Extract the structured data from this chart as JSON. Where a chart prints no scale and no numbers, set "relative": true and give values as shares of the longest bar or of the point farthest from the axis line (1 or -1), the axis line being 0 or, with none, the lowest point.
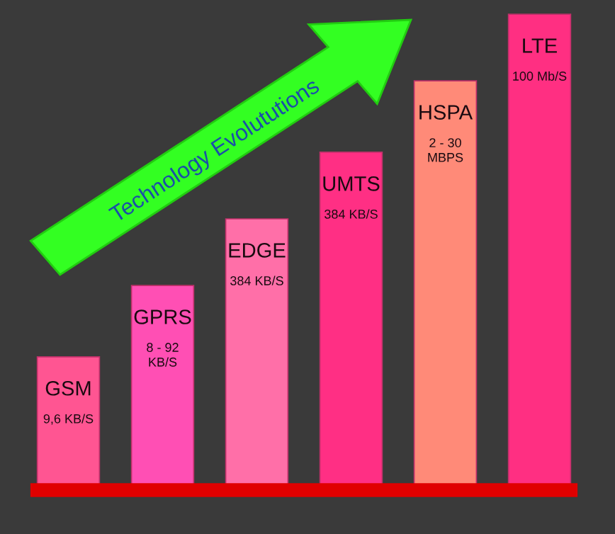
{
  "chart_data": {
    "type": "bar",
    "relative": true,
    "categories": [
      "GSM",
      "GPRS",
      "EDGE",
      "UMTS",
      "HSPA",
      "LTE"
    ],
    "values": [
      0.28,
      0.43,
      0.57,
      0.71,
      0.86,
      1
    ],
    "colors": [
      "#ff5592",
      "#ff4fb4",
      "#ff6fa8",
      "#ff2f84",
      "#ff8a78",
      "#ff2f82"
    ],
    "annotations": [
      "Technology Evolututions",
      "9,6 KB/S",
      "8 - 92\nKB/S",
      "384 KB/S",
      "384 KB/S",
      "2 - 30\nMBPS",
      "100 Mb/S"
    ]
  }
}
